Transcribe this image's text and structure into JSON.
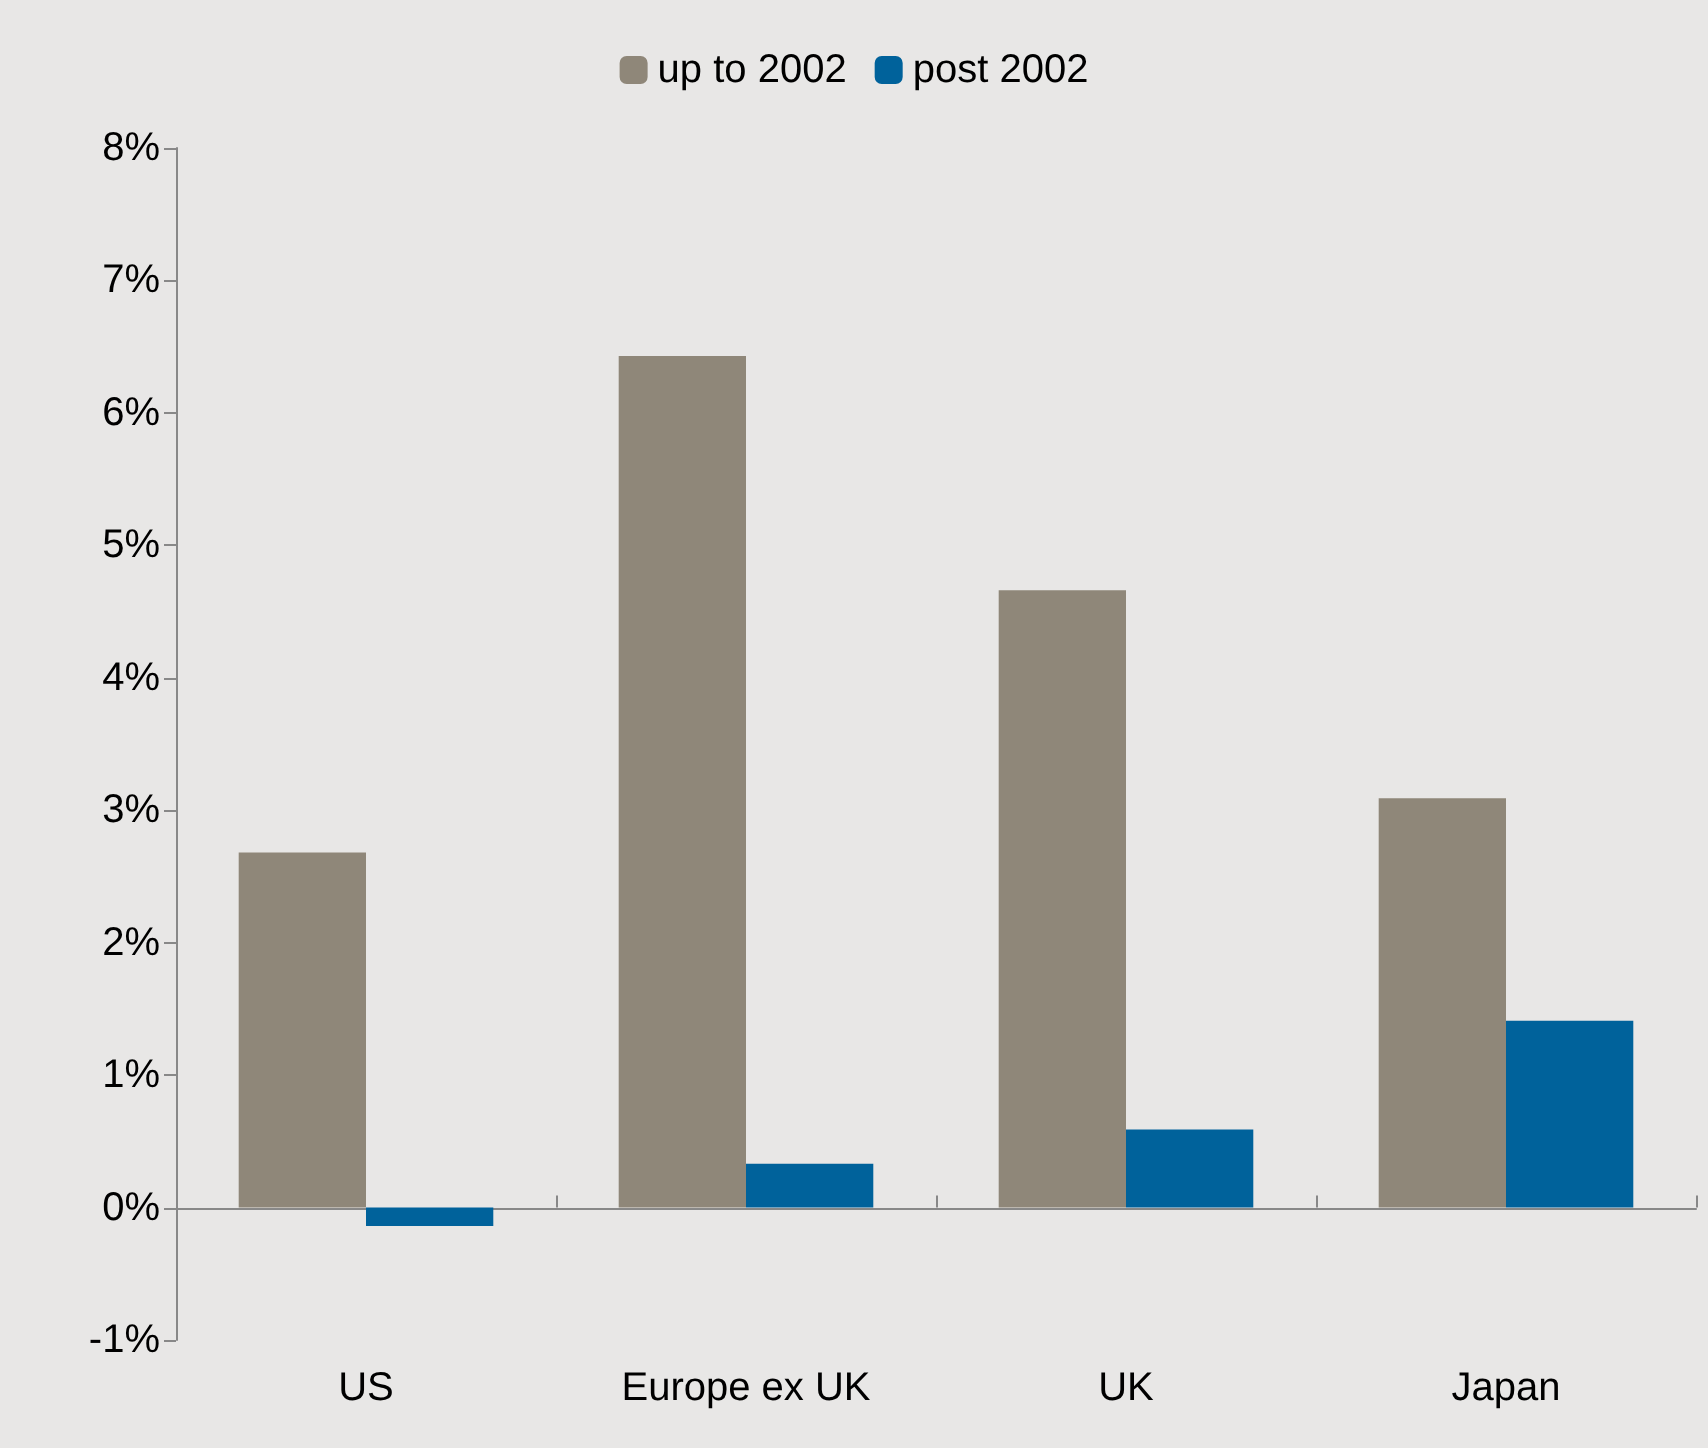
{
  "chart_data": {
    "type": "bar",
    "categories": [
      "US",
      "Europe ex UK",
      "UK",
      "Japan"
    ],
    "series": [
      {
        "name": "up to 2002",
        "color": "#8f8779",
        "values": [
          2.68,
          6.43,
          4.66,
          3.09
        ]
      },
      {
        "name": "post 2002",
        "color": "#00629b",
        "values": [
          -0.14,
          0.33,
          0.59,
          1.41
        ]
      }
    ],
    "ylim": [
      -1,
      8
    ],
    "yticks": [
      {
        "value": -1,
        "label": "-1%"
      },
      {
        "value": 0,
        "label": "0%"
      },
      {
        "value": 1,
        "label": "1%"
      },
      {
        "value": 2,
        "label": "2%"
      },
      {
        "value": 3,
        "label": "3%"
      },
      {
        "value": 4,
        "label": "4%"
      },
      {
        "value": 5,
        "label": "5%"
      },
      {
        "value": 6,
        "label": "6%"
      },
      {
        "value": 7,
        "label": "7%"
      },
      {
        "value": 8,
        "label": "8%"
      }
    ],
    "legend": "top"
  }
}
